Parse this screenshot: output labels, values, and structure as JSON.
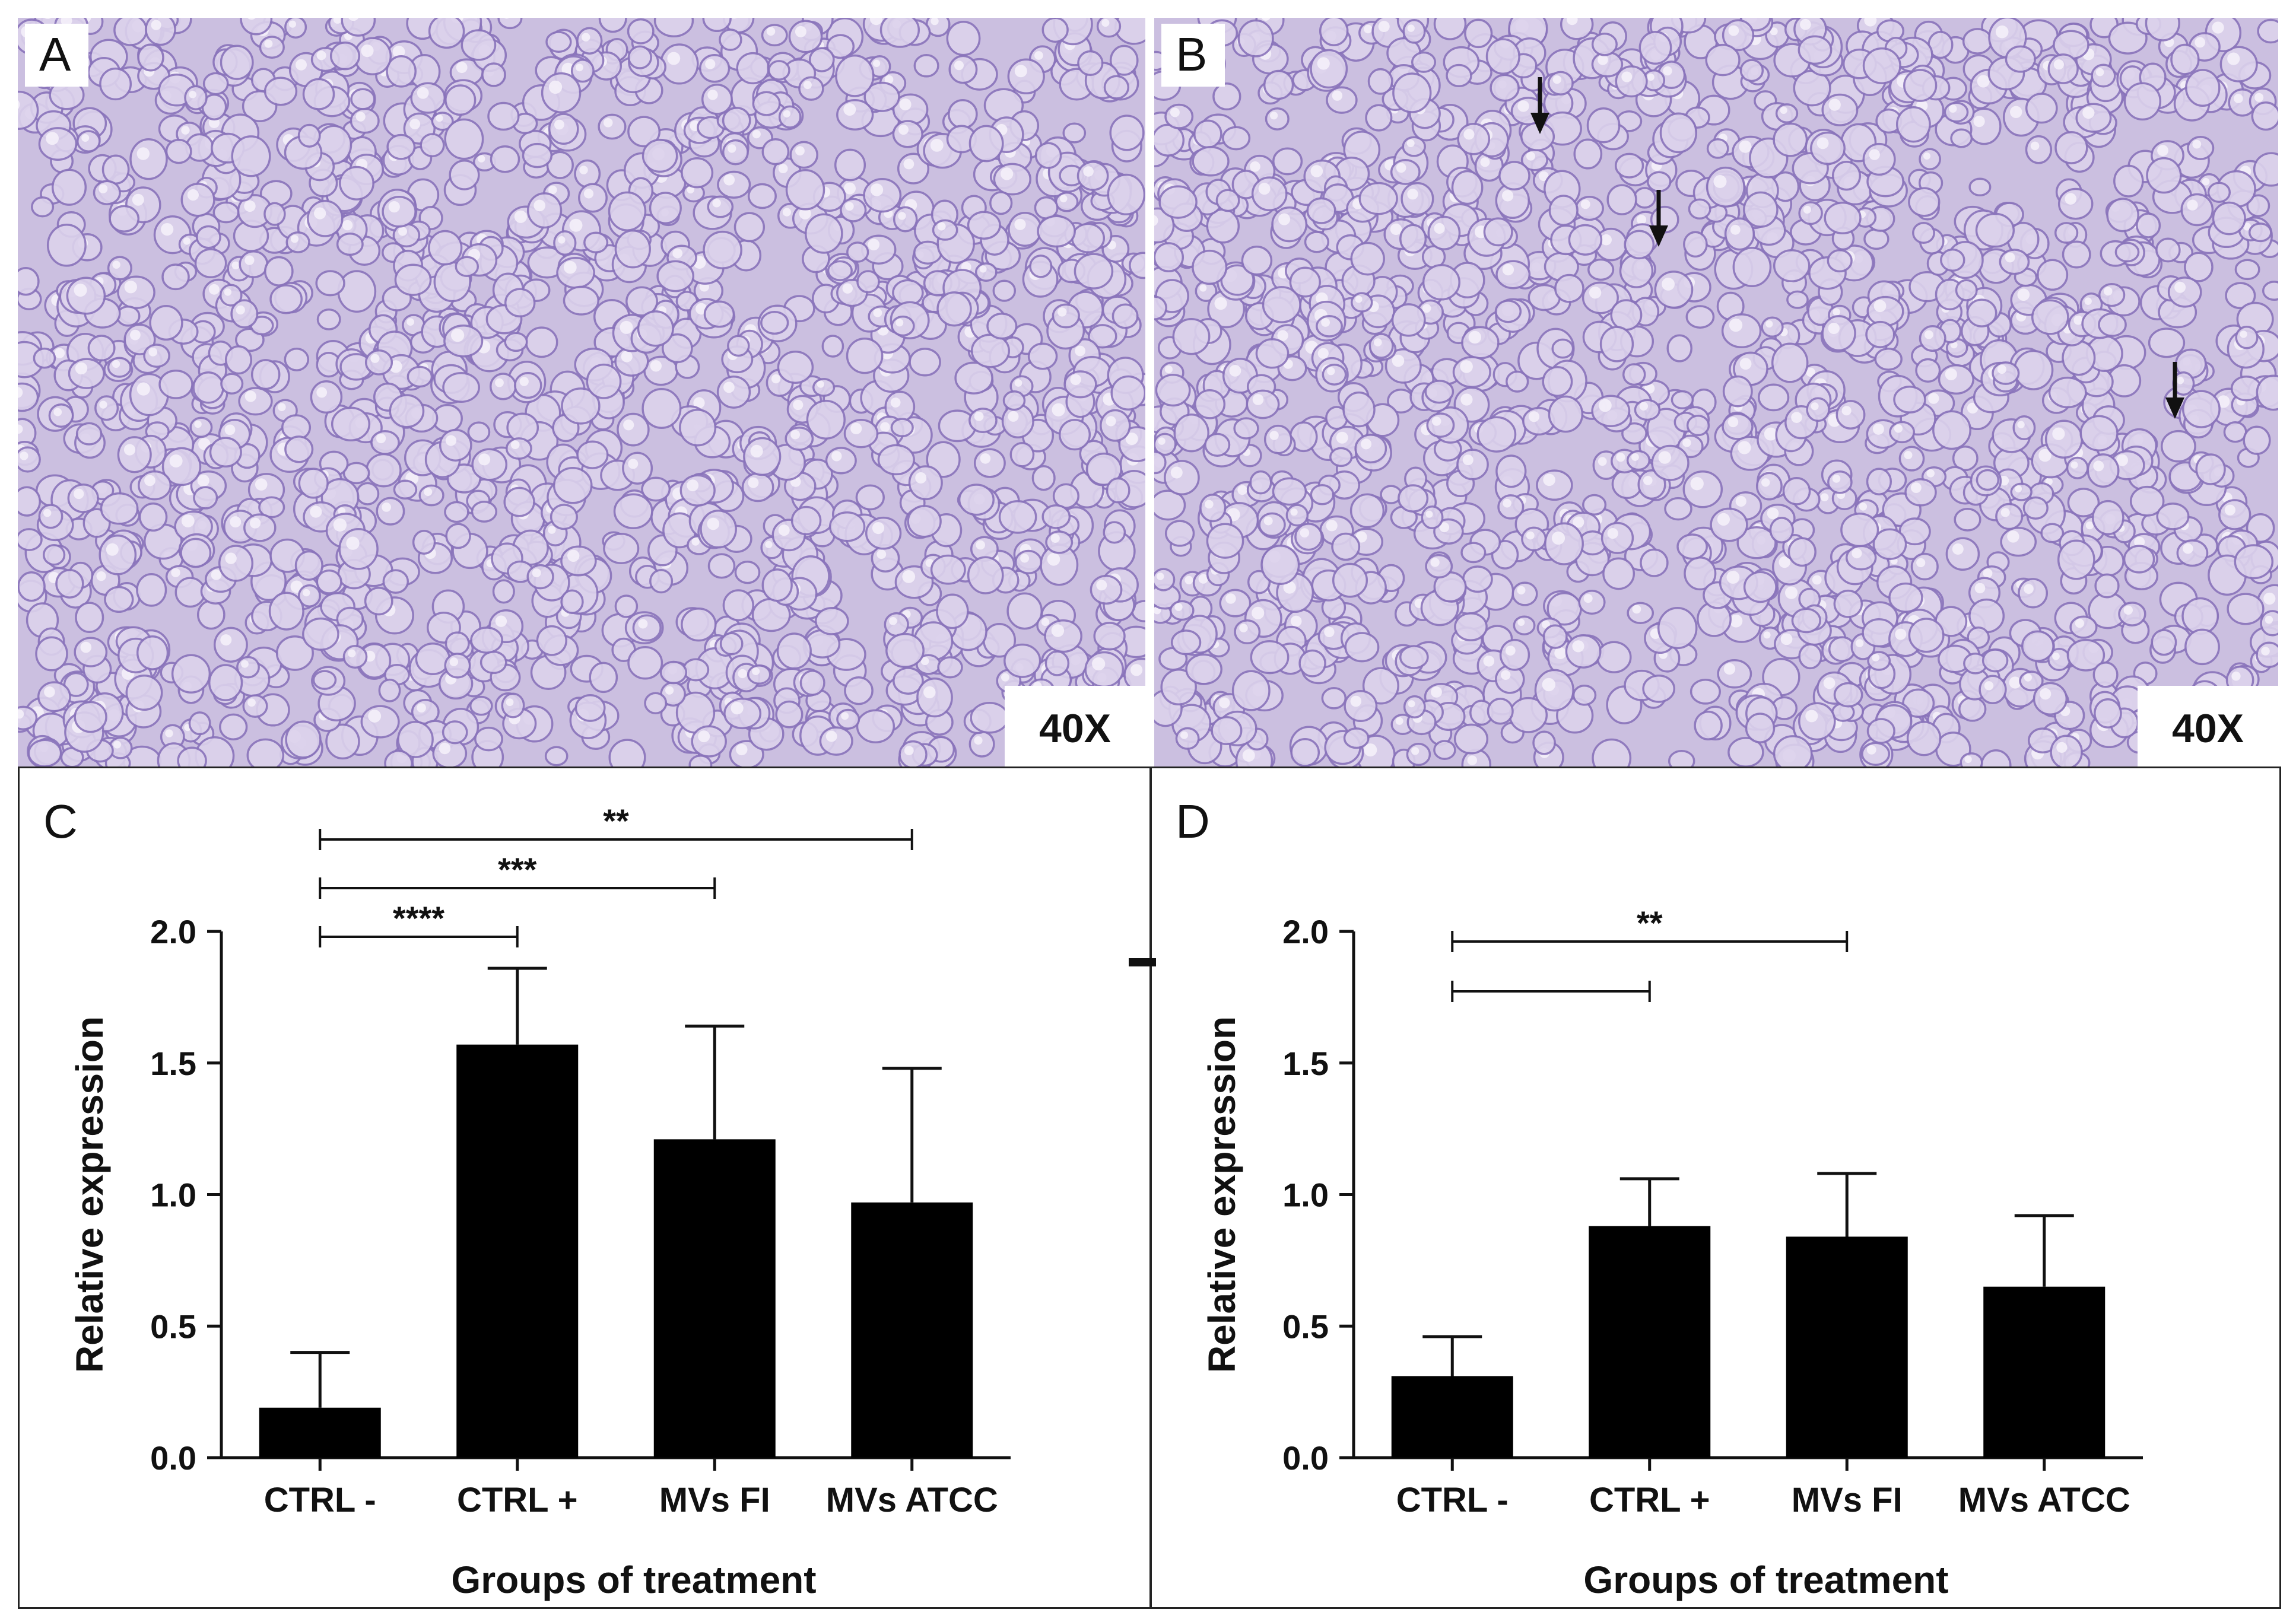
{
  "panels": {
    "A": {
      "letter": "A",
      "magnification": "40X"
    },
    "B": {
      "letter": "B",
      "magnification": "40X"
    },
    "C": {
      "letter": "C"
    },
    "D": {
      "letter": "D"
    }
  },
  "colors": {
    "bar": "#000000",
    "axis": "#111111",
    "micrograph_bg": "#cbbfe0",
    "cell_edge": "#8a74bb"
  },
  "chart_data": [
    {
      "panel": "C",
      "type": "bar",
      "categories": [
        "CTRL -",
        "CTRL +",
        "MVs FI",
        "MVs ATCC"
      ],
      "values": [
        0.19,
        1.57,
        1.21,
        0.97
      ],
      "error_upper": [
        0.4,
        1.86,
        1.64,
        1.48
      ],
      "xlabel": "Groups of treatment",
      "ylabel": "Relative expression",
      "ylim": [
        0,
        2.0
      ],
      "yticks": [
        "0.0",
        "0.5",
        "1.0",
        "1.5",
        "2.0"
      ],
      "significance": [
        {
          "from": 0,
          "to": 1,
          "label": "****"
        },
        {
          "from": 0,
          "to": 2,
          "label": "***"
        },
        {
          "from": 0,
          "to": 3,
          "label": "**"
        }
      ],
      "grid": false,
      "legend": "none"
    },
    {
      "panel": "D",
      "type": "bar",
      "categories": [
        "CTRL -",
        "CTRL +",
        "MVs FI",
        "MVs ATCC"
      ],
      "values": [
        0.31,
        0.88,
        0.84,
        0.65
      ],
      "error_upper": [
        0.46,
        1.06,
        1.08,
        0.92
      ],
      "xlabel": "Groups of treatment",
      "ylabel": "Relative expression",
      "ylim": [
        0,
        2.0
      ],
      "yticks": [
        "0.0",
        "0.5",
        "1.0",
        "1.5",
        "2.0"
      ],
      "significance": [
        {
          "from": 0,
          "to": 1,
          "label": ""
        },
        {
          "from": 0,
          "to": 2,
          "label": "**"
        }
      ],
      "grid": false,
      "legend": "none"
    }
  ]
}
